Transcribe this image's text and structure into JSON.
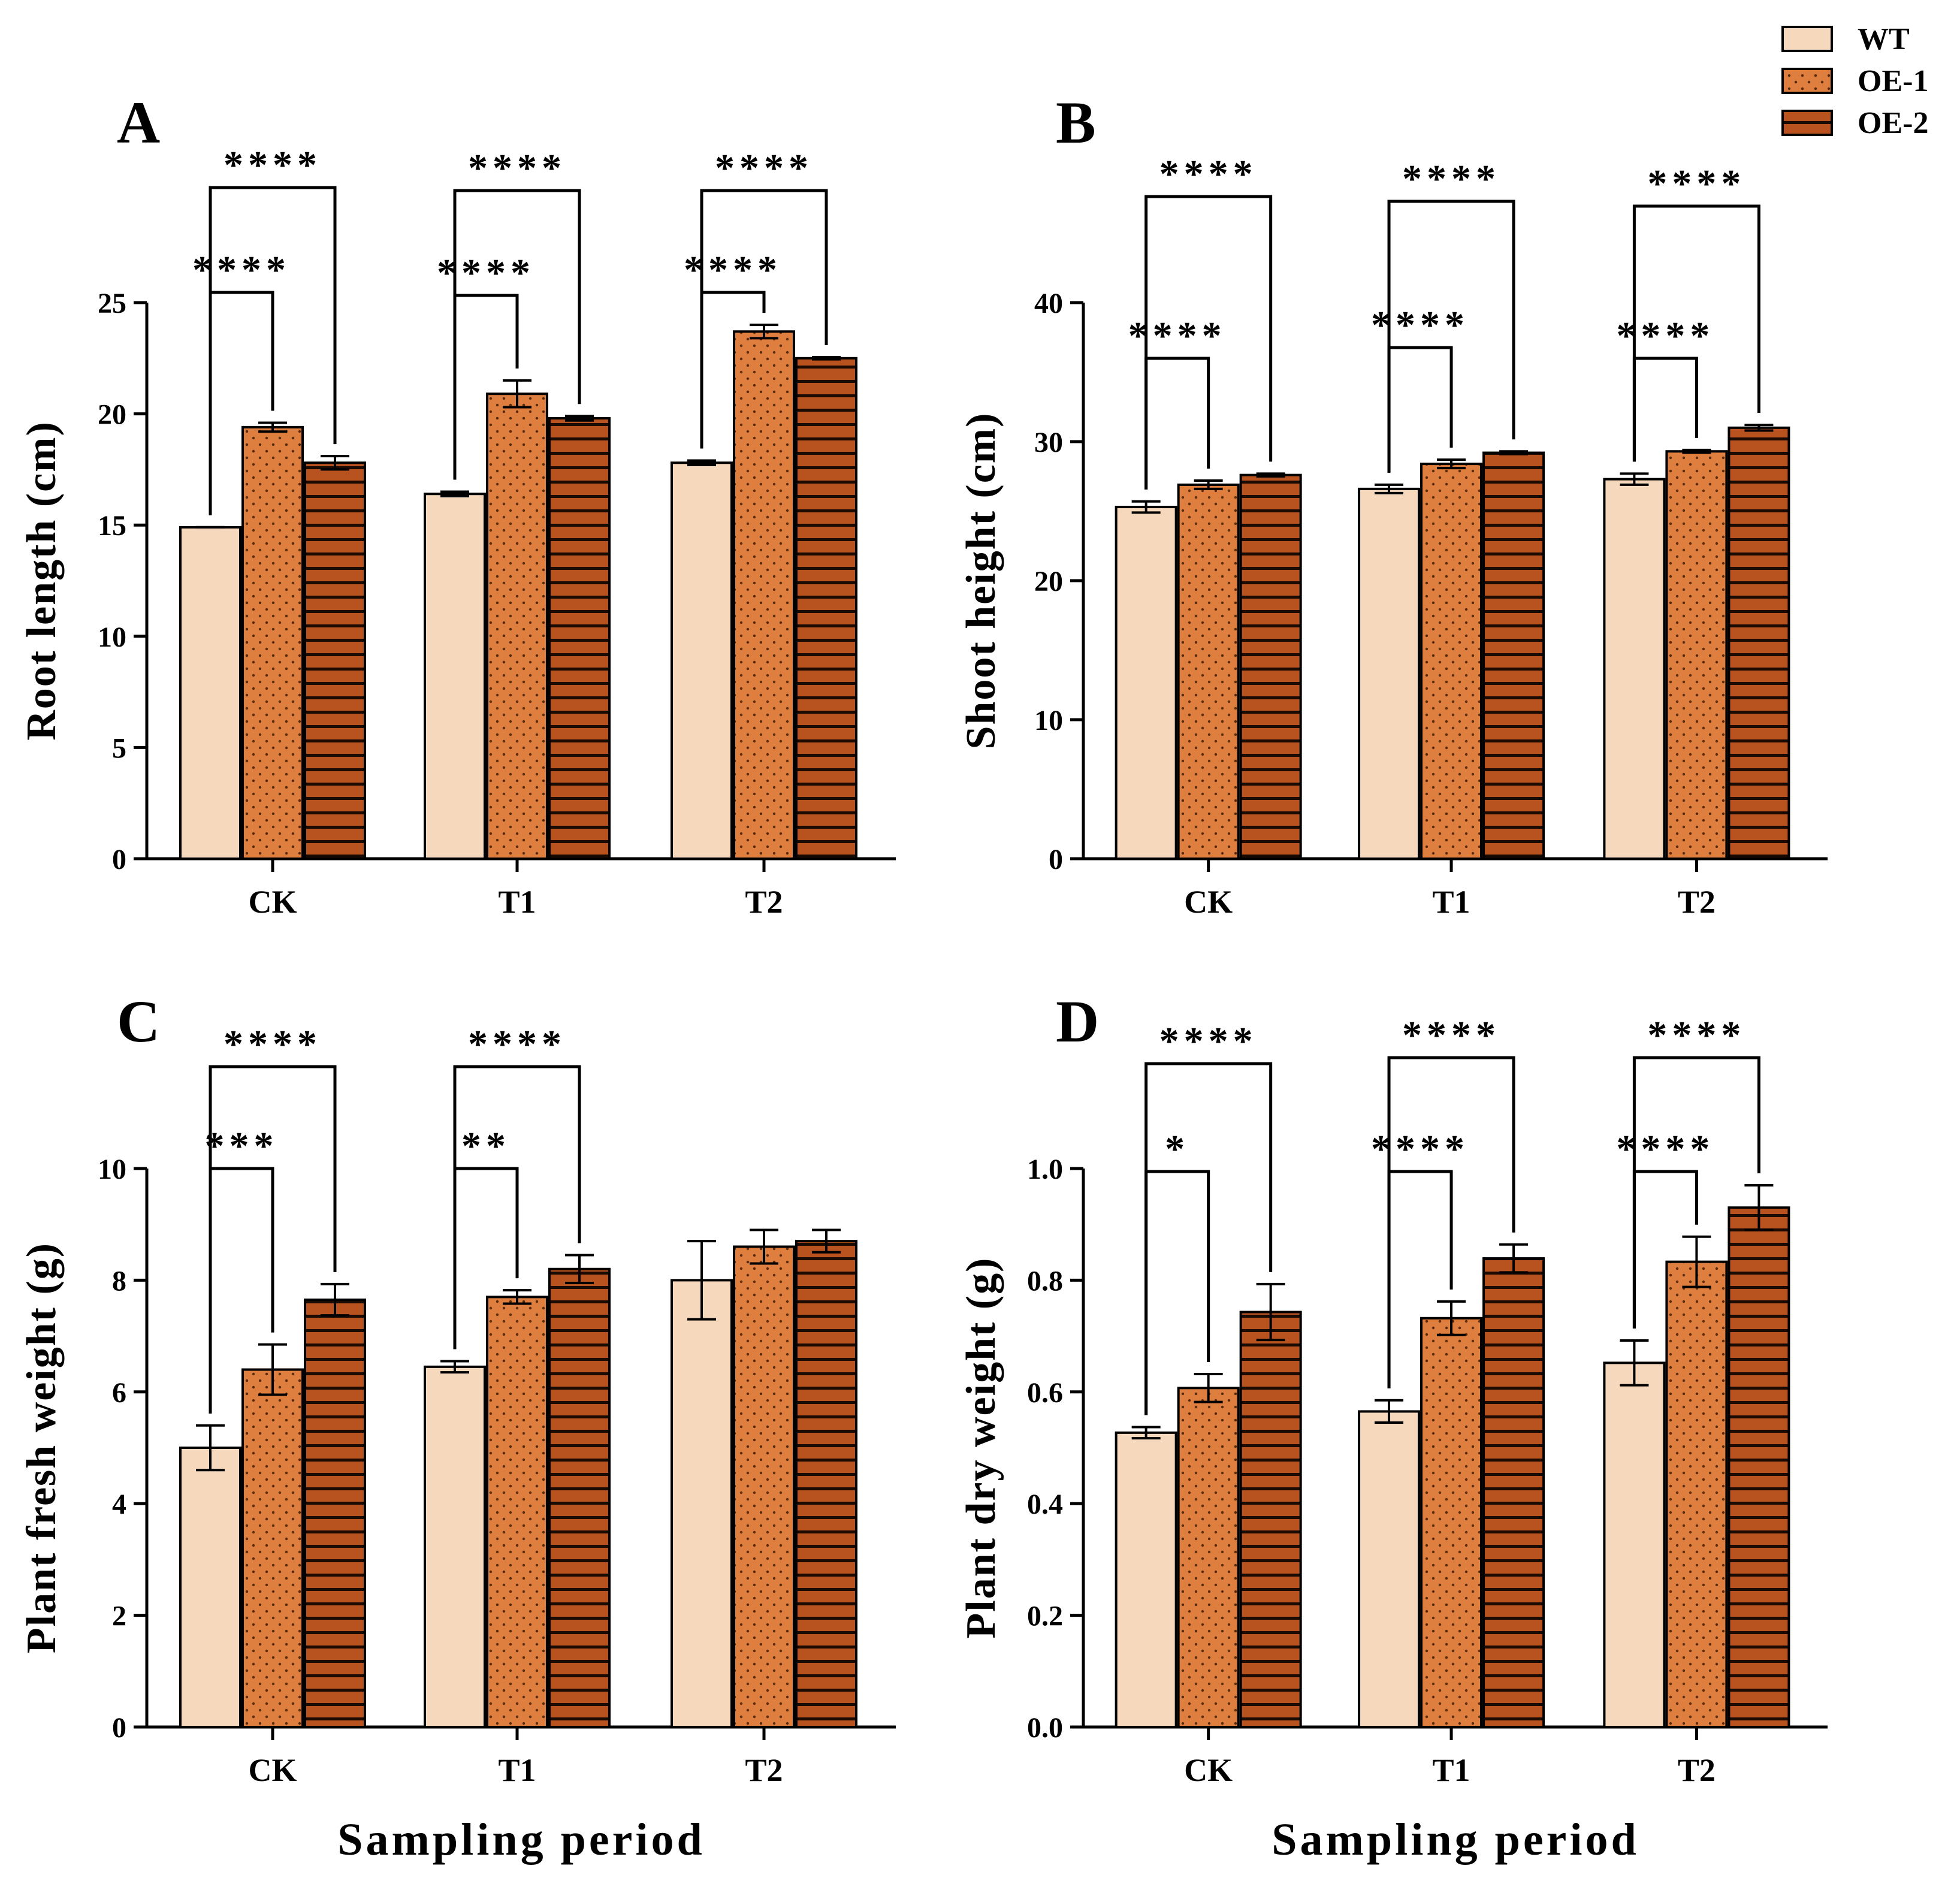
{
  "legend": {
    "entries": [
      {
        "name": "WT",
        "fill": "#f6d8bd",
        "pattern": "plain"
      },
      {
        "name": "OE-1",
        "fill": "#de7e3f",
        "pattern": "dots"
      },
      {
        "name": "OE-2",
        "fill": "#b8521f",
        "pattern": "stripes"
      }
    ]
  },
  "colors": {
    "wt": "#f6d8bd",
    "oe1": "#de7e3f",
    "oe2": "#b8521f",
    "stripe": "#1a0a00",
    "dot": "#5a2a0a"
  },
  "chart_data": [
    {
      "panel": "A",
      "type": "bar",
      "title": "",
      "categories": [
        "CK",
        "T1",
        "T2"
      ],
      "ylabel": "Root length (cm)",
      "xlabel": "",
      "ylim": [
        0,
        25
      ],
      "yticks": [
        0,
        5,
        10,
        15,
        20,
        25
      ],
      "ytick_labels": [
        "0",
        "5",
        "10",
        "15",
        "20",
        "25"
      ],
      "series": [
        {
          "name": "WT",
          "values": [
            14.9,
            16.4,
            17.8
          ],
          "errors": [
            0.0,
            0.1,
            0.1
          ]
        },
        {
          "name": "OE-1",
          "values": [
            19.4,
            20.9,
            23.7
          ],
          "errors": [
            0.2,
            0.6,
            0.3
          ]
        },
        {
          "name": "OE-2",
          "values": [
            17.8,
            19.8,
            22.5
          ],
          "errors": [
            0.3,
            0.1,
            0.05
          ]
        }
      ],
      "significance": [
        {
          "group": "CK",
          "compare": "OE-1",
          "label": "****"
        },
        {
          "group": "CK",
          "compare": "OE-2",
          "label": "****"
        },
        {
          "group": "T1",
          "compare": "OE-1",
          "label": "****"
        },
        {
          "group": "T1",
          "compare": "OE-2",
          "label": "****"
        },
        {
          "group": "T2",
          "compare": "OE-1",
          "label": "****"
        },
        {
          "group": "T2",
          "compare": "OE-2",
          "label": "****"
        }
      ]
    },
    {
      "panel": "B",
      "type": "bar",
      "title": "",
      "categories": [
        "CK",
        "T1",
        "T2"
      ],
      "ylabel": "Shoot height (cm)",
      "xlabel": "",
      "ylim": [
        0,
        40
      ],
      "yticks": [
        0,
        10,
        20,
        30,
        40
      ],
      "ytick_labels": [
        "0",
        "10",
        "20",
        "30",
        "40"
      ],
      "series": [
        {
          "name": "WT",
          "values": [
            25.3,
            26.6,
            27.3
          ],
          "errors": [
            0.4,
            0.3,
            0.4
          ]
        },
        {
          "name": "OE-1",
          "values": [
            26.9,
            28.4,
            29.3
          ],
          "errors": [
            0.3,
            0.3,
            0.1
          ]
        },
        {
          "name": "OE-2",
          "values": [
            27.6,
            29.2,
            31.0
          ],
          "errors": [
            0.1,
            0.1,
            0.2
          ]
        }
      ],
      "significance": [
        {
          "group": "CK",
          "compare": "OE-1",
          "label": "****"
        },
        {
          "group": "CK",
          "compare": "OE-2",
          "label": "****"
        },
        {
          "group": "T1",
          "compare": "OE-1",
          "label": "****"
        },
        {
          "group": "T1",
          "compare": "OE-2",
          "label": "****"
        },
        {
          "group": "T2",
          "compare": "OE-1",
          "label": "****"
        },
        {
          "group": "T2",
          "compare": "OE-2",
          "label": "****"
        }
      ]
    },
    {
      "panel": "C",
      "type": "bar",
      "title": "",
      "categories": [
        "CK",
        "T1",
        "T2"
      ],
      "ylabel": "Plant fresh weight (g)",
      "xlabel": "Sampling period",
      "ylim": [
        0,
        10
      ],
      "yticks": [
        0,
        2,
        4,
        6,
        8,
        10
      ],
      "ytick_labels": [
        "0",
        "2",
        "4",
        "6",
        "8",
        "10"
      ],
      "series": [
        {
          "name": "WT",
          "values": [
            5.0,
            6.45,
            8.0
          ],
          "errors": [
            0.4,
            0.1,
            0.7
          ]
        },
        {
          "name": "OE-1",
          "values": [
            6.4,
            7.7,
            8.6
          ],
          "errors": [
            0.45,
            0.12,
            0.3
          ]
        },
        {
          "name": "OE-2",
          "values": [
            7.65,
            8.2,
            8.7
          ],
          "errors": [
            0.28,
            0.25,
            0.2
          ]
        }
      ],
      "significance": [
        {
          "group": "CK",
          "compare": "OE-1",
          "label": "***"
        },
        {
          "group": "CK",
          "compare": "OE-2",
          "label": "****"
        },
        {
          "group": "T1",
          "compare": "OE-1",
          "label": "**"
        },
        {
          "group": "T1",
          "compare": "OE-2",
          "label": "****"
        }
      ]
    },
    {
      "panel": "D",
      "type": "bar",
      "title": "",
      "categories": [
        "CK",
        "T1",
        "T2"
      ],
      "ylabel": "Plant dry weight (g)",
      "xlabel": "Sampling period",
      "ylim": [
        0,
        1.0
      ],
      "yticks": [
        0,
        0.2,
        0.4,
        0.6,
        0.8,
        1.0
      ],
      "ytick_labels": [
        "0.0",
        "0.2",
        "0.4",
        "0.6",
        "0.8",
        "1.0"
      ],
      "series": [
        {
          "name": "WT",
          "values": [
            0.527,
            0.565,
            0.652
          ],
          "errors": [
            0.01,
            0.02,
            0.04
          ]
        },
        {
          "name": "OE-1",
          "values": [
            0.607,
            0.732,
            0.833
          ],
          "errors": [
            0.025,
            0.03,
            0.045
          ]
        },
        {
          "name": "OE-2",
          "values": [
            0.743,
            0.839,
            0.93
          ],
          "errors": [
            0.05,
            0.025,
            0.04
          ]
        }
      ],
      "significance": [
        {
          "group": "CK",
          "compare": "OE-1",
          "label": "*"
        },
        {
          "group": "CK",
          "compare": "OE-2",
          "label": "****"
        },
        {
          "group": "T1",
          "compare": "OE-1",
          "label": "****"
        },
        {
          "group": "T1",
          "compare": "OE-2",
          "label": "****"
        },
        {
          "group": "T2",
          "compare": "OE-1",
          "label": "****"
        },
        {
          "group": "T2",
          "compare": "OE-2",
          "label": "****"
        }
      ]
    }
  ]
}
